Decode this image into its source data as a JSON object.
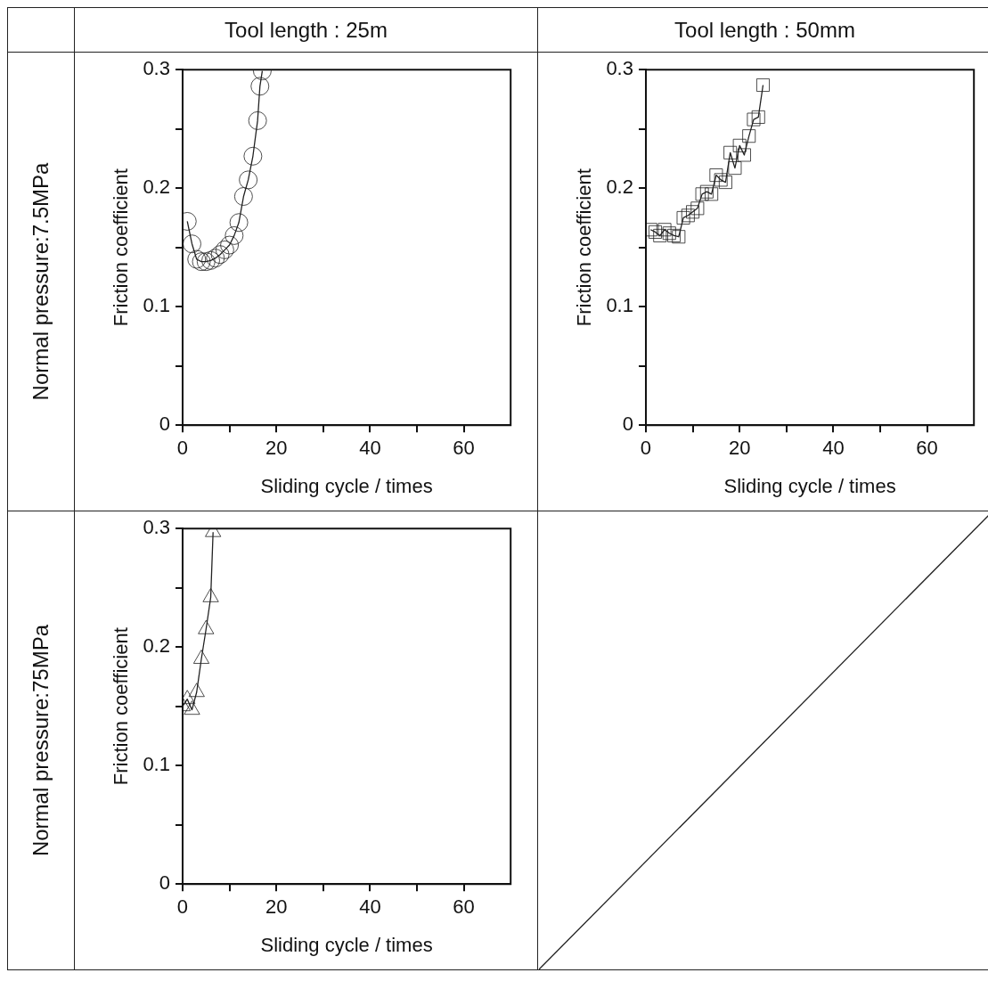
{
  "chart_data": [
    {
      "type": "line",
      "title": "Tool length : 25m",
      "annotations": [
        "Normal pressure:7.5MPa"
      ],
      "xlabel": "Sliding cycle / times",
      "ylabel": "Friction coefficient",
      "marker": "circle",
      "xlim": [
        0,
        70
      ],
      "ylim": [
        0,
        0.3
      ],
      "xticks": [
        0,
        {
          "value": 10,
          "label": null
        },
        20,
        {
          "value": 30,
          "label": null
        },
        40,
        {
          "value": 50,
          "label": null
        },
        60
      ],
      "yticks": [
        0,
        {
          "value": 0.05,
          "label": null
        },
        0.1,
        {
          "value": 0.15,
          "label": null
        },
        0.2,
        {
          "value": 0.25,
          "label": null
        },
        0.3
      ],
      "series": [
        {
          "color": "#222222",
          "x": [
            1,
            2,
            3,
            4,
            5,
            6,
            7,
            8,
            9,
            10,
            11,
            12,
            13,
            14,
            15,
            16,
            16.5,
            17
          ],
          "values": [
            0.172,
            0.153,
            0.14,
            0.138,
            0.138,
            0.139,
            0.141,
            0.144,
            0.148,
            0.152,
            0.16,
            0.171,
            0.193,
            0.207,
            0.227,
            0.257,
            0.286,
            0.299
          ]
        }
      ]
    },
    {
      "type": "line",
      "title": "Tool length : 50mm",
      "xlabel": "Sliding cycle / times",
      "ylabel": "Friction coefficient",
      "marker": "square",
      "xlim": [
        0,
        70
      ],
      "ylim": [
        0,
        0.3
      ],
      "xticks": [
        0,
        {
          "value": 10,
          "label": null
        },
        20,
        {
          "value": 30,
          "label": null
        },
        40,
        {
          "value": 50,
          "label": null
        },
        60
      ],
      "yticks": [
        0,
        {
          "value": 0.05,
          "label": null
        },
        0.1,
        {
          "value": 0.15,
          "label": null
        },
        0.2,
        {
          "value": 0.25,
          "label": null
        },
        0.3
      ],
      "series": [
        {
          "color": "#222222",
          "x": [
            1,
            2,
            3,
            4,
            5,
            6,
            7,
            8,
            9,
            10,
            11,
            12,
            13,
            14,
            15,
            16,
            17,
            18,
            19,
            20,
            21,
            22,
            23,
            24,
            25
          ],
          "values": [
            0.165,
            0.163,
            0.16,
            0.165,
            0.162,
            0.16,
            0.159,
            0.175,
            0.177,
            0.18,
            0.183,
            0.195,
            0.197,
            0.195,
            0.211,
            0.207,
            0.205,
            0.23,
            0.217,
            0.236,
            0.228,
            0.244,
            0.258,
            0.26,
            0.287
          ]
        }
      ]
    },
    {
      "type": "line",
      "annotations": [
        "Normal pressure:75MPa"
      ],
      "xlabel": "Sliding cycle / times",
      "ylabel": "Friction coefficient",
      "marker": "triangle",
      "xlim": [
        0,
        70
      ],
      "ylim": [
        0,
        0.3
      ],
      "xticks": [
        0,
        {
          "value": 10,
          "label": null
        },
        20,
        {
          "value": 30,
          "label": null
        },
        40,
        {
          "value": 50,
          "label": null
        },
        60
      ],
      "yticks": [
        0,
        {
          "value": 0.05,
          "label": null
        },
        0.1,
        {
          "value": 0.15,
          "label": null
        },
        0.2,
        {
          "value": 0.25,
          "label": null
        },
        0.3
      ],
      "series": [
        {
          "color": "#222222",
          "x": [
            0,
            1,
            2,
            3,
            4,
            5,
            6,
            6.5
          ],
          "values": [
            0.15,
            0.156,
            0.147,
            0.162,
            0.19,
            0.215,
            0.242,
            0.297
          ]
        }
      ]
    }
  ]
}
